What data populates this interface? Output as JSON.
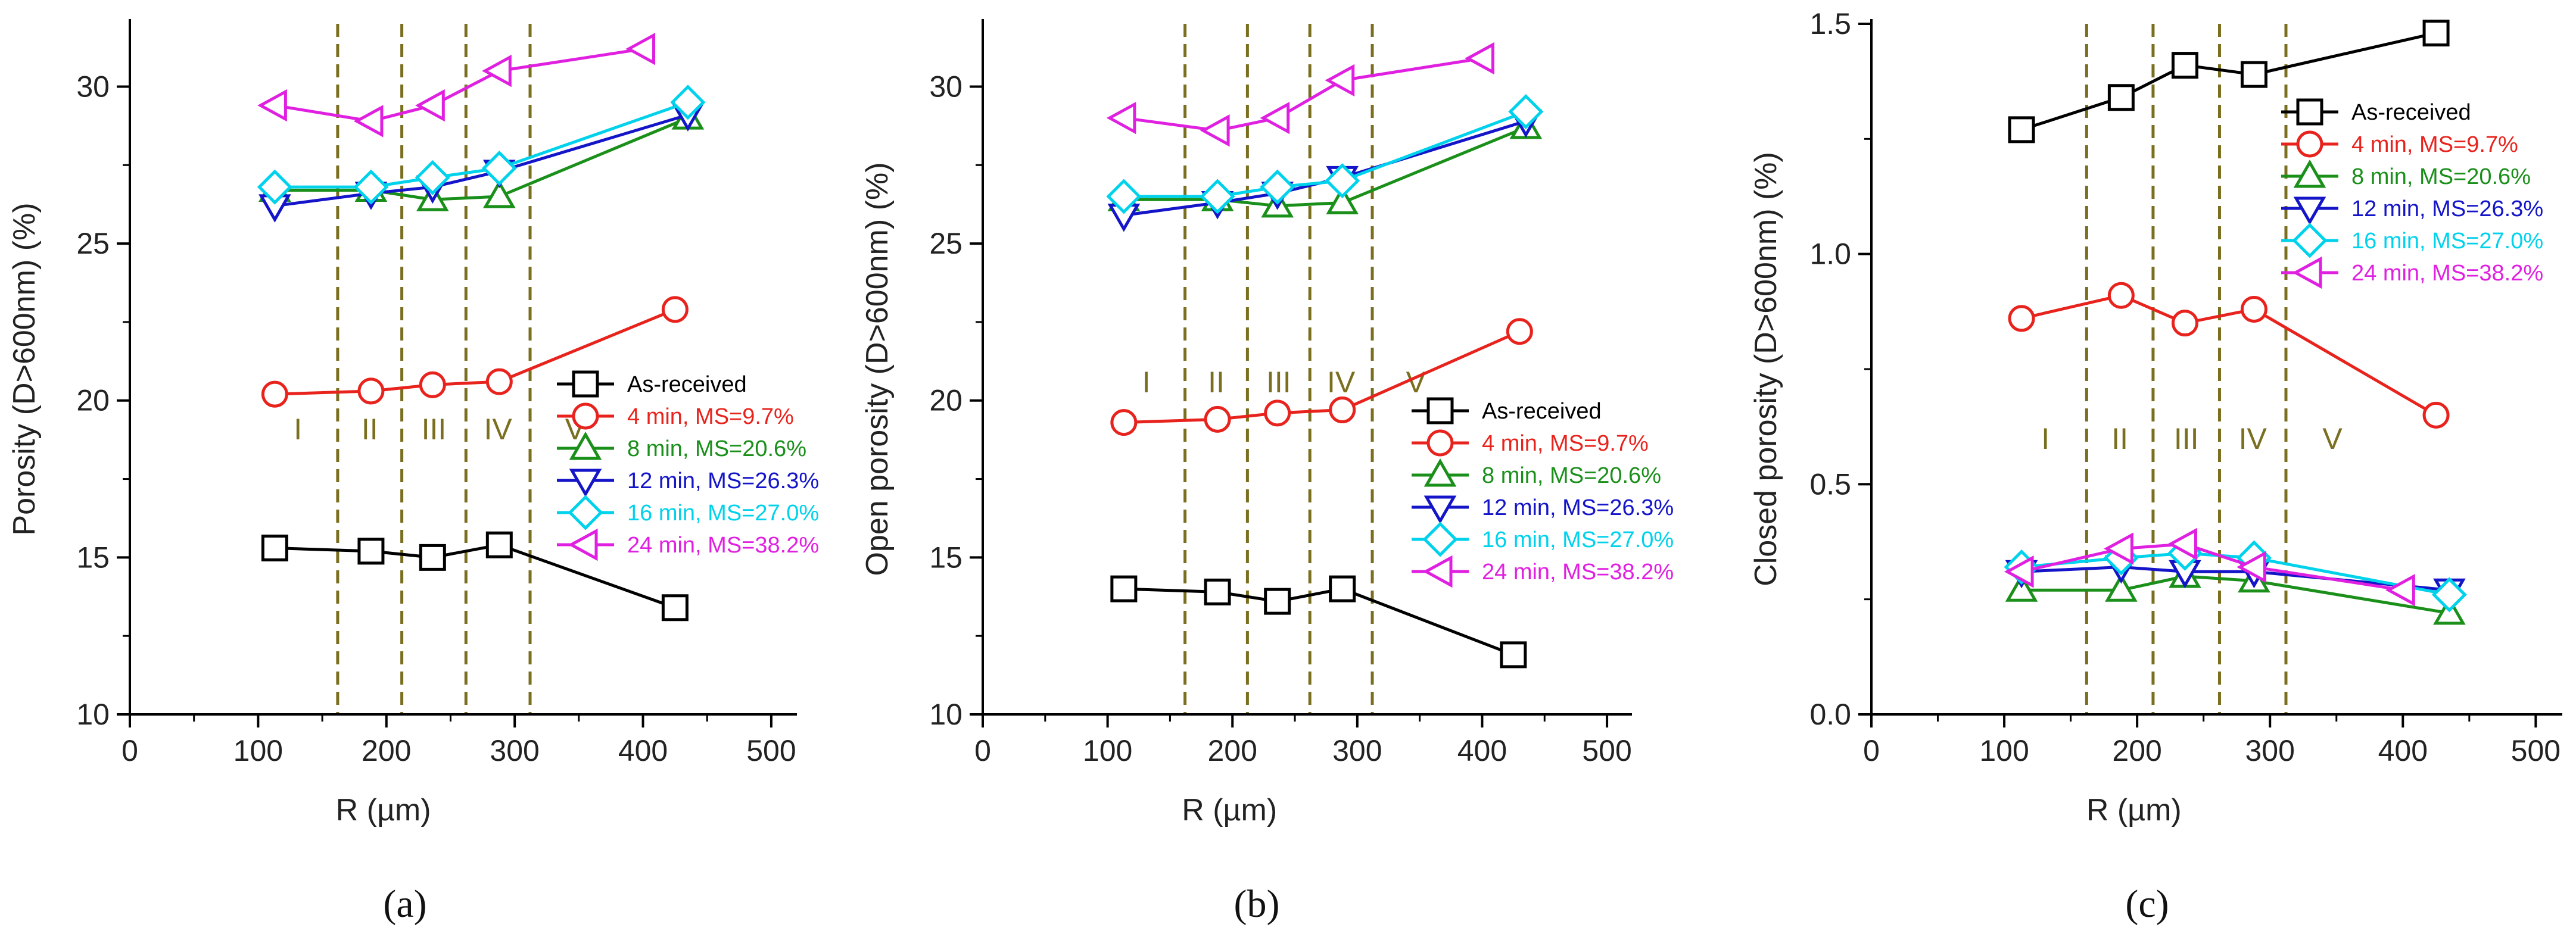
{
  "figure": {
    "panel_labels": [
      "(a)",
      "(b)",
      "(c)"
    ]
  },
  "series_styles": [
    {
      "name": "As-received",
      "color": "#000000",
      "marker": "square"
    },
    {
      "name": "4 min, MS=9.7%",
      "color": "#e8231d",
      "marker": "circle"
    },
    {
      "name": "8 min, MS=20.6%",
      "color": "#1a8f1a",
      "marker": "triangle-up"
    },
    {
      "name": "12 min, MS=26.3%",
      "color": "#1414c8",
      "marker": "triangle-down"
    },
    {
      "name": "16 min, MS=27.0%",
      "color": "#00d2ec",
      "marker": "diamond"
    },
    {
      "name": "24 min, MS=38.2%",
      "color": "#e020e0",
      "marker": "triangle-left"
    }
  ],
  "chart_data": [
    {
      "type": "line",
      "panel": "(a)",
      "xlabel": "R (µm)",
      "ylabel": "Porosity (D>600nm) (%)",
      "xlim": [
        0,
        520
      ],
      "ylim": [
        10,
        32
      ],
      "xticks": [
        0,
        100,
        200,
        300,
        400,
        500
      ],
      "yticks": [
        10,
        15,
        20,
        25,
        30
      ],
      "ytick_labels": [
        "10",
        "15",
        "20",
        "25",
        "30"
      ],
      "region_boundaries": [
        162,
        212,
        262,
        312
      ],
      "region_labels": [
        "I",
        "II",
        "III",
        "IV",
        "V"
      ],
      "region_label_y": 19.1,
      "legend_position": "lower-right",
      "series": [
        {
          "name": "As-received",
          "x": [
            113,
            188,
            236,
            288,
            425
          ],
          "y": [
            15.3,
            15.2,
            15.0,
            15.4,
            13.4
          ]
        },
        {
          "name": "4 min, MS=9.7%",
          "x": [
            113,
            188,
            236,
            288,
            425
          ],
          "y": [
            20.2,
            20.3,
            20.5,
            20.6,
            22.9
          ]
        },
        {
          "name": "8 min, MS=20.6%",
          "x": [
            113,
            188,
            236,
            288,
            435
          ],
          "y": [
            26.7,
            26.7,
            26.4,
            26.5,
            29.0
          ]
        },
        {
          "name": "12 min, MS=26.3%",
          "x": [
            113,
            188,
            236,
            288,
            435
          ],
          "y": [
            26.2,
            26.6,
            26.8,
            27.3,
            29.1
          ]
        },
        {
          "name": "16 min, MS=27.0%",
          "x": [
            113,
            188,
            236,
            288,
            435
          ],
          "y": [
            26.8,
            26.8,
            27.1,
            27.4,
            29.5
          ]
        },
        {
          "name": "24 min, MS=38.2%",
          "x": [
            113,
            188,
            236,
            288,
            400
          ],
          "y": [
            29.4,
            28.9,
            29.4,
            30.5,
            31.2
          ]
        }
      ]
    },
    {
      "type": "line",
      "panel": "(b)",
      "xlabel": "R (µm)",
      "ylabel": "Open porosity (D>600nm) (%)",
      "xlim": [
        0,
        520
      ],
      "ylim": [
        10,
        32
      ],
      "xticks": [
        0,
        100,
        200,
        300,
        400,
        500
      ],
      "yticks": [
        10,
        15,
        20,
        25,
        30
      ],
      "ytick_labels": [
        "10",
        "15",
        "20",
        "25",
        "30"
      ],
      "region_boundaries": [
        162,
        212,
        262,
        312
      ],
      "region_labels": [
        "I",
        "II",
        "III",
        "IV",
        "V"
      ],
      "region_label_y": 20.6,
      "legend_position": "lower-right",
      "series": [
        {
          "name": "As-received",
          "x": [
            113,
            188,
            236,
            288,
            425
          ],
          "y": [
            14.0,
            13.9,
            13.6,
            14.0,
            11.9
          ]
        },
        {
          "name": "4 min, MS=9.7%",
          "x": [
            113,
            188,
            236,
            288,
            430
          ],
          "y": [
            19.3,
            19.4,
            19.6,
            19.7,
            22.2
          ]
        },
        {
          "name": "8 min, MS=20.6%",
          "x": [
            113,
            188,
            236,
            288,
            435
          ],
          "y": [
            26.4,
            26.4,
            26.2,
            26.3,
            28.7
          ]
        },
        {
          "name": "12 min, MS=26.3%",
          "x": [
            113,
            188,
            236,
            288,
            435
          ],
          "y": [
            25.9,
            26.3,
            26.6,
            27.1,
            28.9
          ]
        },
        {
          "name": "16 min, MS=27.0%",
          "x": [
            113,
            188,
            236,
            288,
            435
          ],
          "y": [
            26.5,
            26.5,
            26.8,
            27.0,
            29.2
          ]
        },
        {
          "name": "24 min, MS=38.2%",
          "x": [
            113,
            188,
            236,
            288,
            400
          ],
          "y": [
            29.0,
            28.6,
            29.0,
            30.2,
            30.9
          ]
        }
      ]
    },
    {
      "type": "line",
      "panel": "(c)",
      "xlabel": "R (µm)",
      "ylabel": "Closed porosity (D>600nm) (%)",
      "xlim": [
        0,
        520
      ],
      "ylim": [
        0,
        1.5
      ],
      "xticks": [
        0,
        100,
        200,
        300,
        400,
        500
      ],
      "yticks": [
        0,
        0.5,
        1.0,
        1.5
      ],
      "ytick_labels": [
        "0.0",
        "0.5",
        "1.0",
        "1.5"
      ],
      "region_boundaries": [
        162,
        212,
        262,
        312
      ],
      "region_labels": [
        "I",
        "II",
        "III",
        "IV",
        "V"
      ],
      "region_label_y": 0.6,
      "legend_position": "upper-right",
      "series": [
        {
          "name": "As-received",
          "x": [
            113,
            188,
            236,
            288,
            425
          ],
          "y": [
            1.27,
            1.34,
            1.41,
            1.39,
            1.48
          ]
        },
        {
          "name": "4 min, MS=9.7%",
          "x": [
            113,
            188,
            236,
            288,
            425
          ],
          "y": [
            0.86,
            0.91,
            0.85,
            0.88,
            0.65
          ]
        },
        {
          "name": "8 min, MS=20.6%",
          "x": [
            113,
            188,
            236,
            288,
            435
          ],
          "y": [
            0.27,
            0.27,
            0.3,
            0.29,
            0.22
          ]
        },
        {
          "name": "12 min, MS=26.3%",
          "x": [
            113,
            188,
            236,
            288,
            435
          ],
          "y": [
            0.31,
            0.32,
            0.31,
            0.31,
            0.27
          ]
        },
        {
          "name": "16 min, MS=27.0%",
          "x": [
            113,
            188,
            236,
            288,
            435
          ],
          "y": [
            0.32,
            0.34,
            0.35,
            0.34,
            0.26
          ]
        },
        {
          "name": "24 min, MS=38.2%",
          "x": [
            113,
            188,
            236,
            288,
            400
          ],
          "y": [
            0.31,
            0.36,
            0.37,
            0.32,
            0.27
          ]
        }
      ]
    }
  ]
}
